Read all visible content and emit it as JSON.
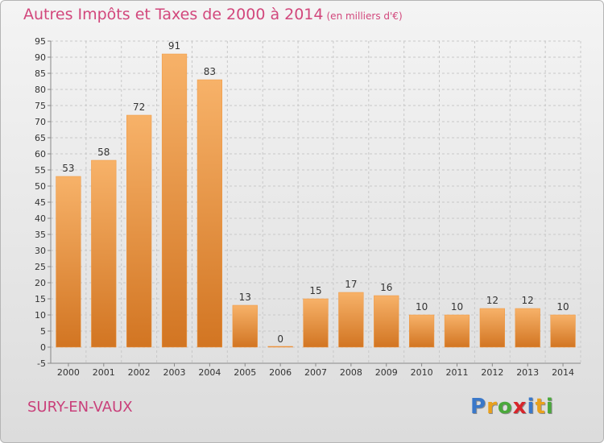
{
  "title": "Autres Impôts et Taxes de 2000 à 2014",
  "subtitle": "(en milliers d'€)",
  "commune": "SURY-EN-VAUX",
  "logo": {
    "letters": [
      "P",
      "r",
      "o",
      "x",
      "i",
      "t",
      "i"
    ],
    "colors": [
      "#3a78c9",
      "#e9a11d",
      "#4aa83b",
      "#d7252b",
      "#3a78c9",
      "#e9a11d",
      "#4aa83b"
    ]
  },
  "chart_data": {
    "type": "bar",
    "categories": [
      "2000",
      "2001",
      "2002",
      "2003",
      "2004",
      "2005",
      "2006",
      "2007",
      "2008",
      "2009",
      "2010",
      "2011",
      "2012",
      "2013",
      "2014"
    ],
    "values": [
      53,
      58,
      72,
      91,
      83,
      13,
      0,
      15,
      17,
      16,
      10,
      10,
      12,
      12,
      10
    ],
    "ylim": [
      -5,
      95
    ],
    "yticks": [
      -5,
      0,
      5,
      10,
      15,
      20,
      25,
      30,
      35,
      40,
      45,
      50,
      55,
      60,
      65,
      70,
      75,
      80,
      85,
      90,
      95
    ],
    "grid": true,
    "bar_color": "#f0953c",
    "bar_color_light": "#f7b269",
    "bar_color_dark": "#d27522"
  }
}
